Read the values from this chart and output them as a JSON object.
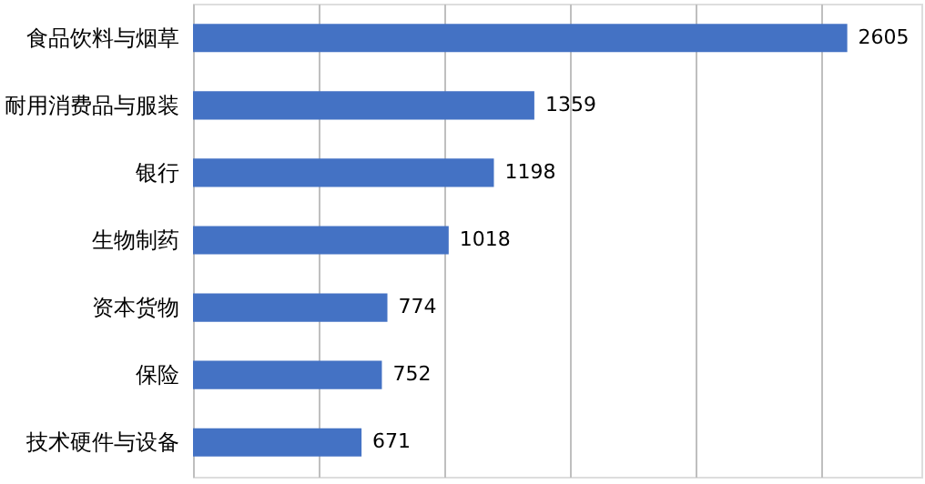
{
  "chart_data": {
    "type": "bar",
    "orientation": "horizontal",
    "categories": [
      "食品饮料与烟草",
      "耐用消费品与服装",
      "银行",
      "生物制药",
      "资本货物",
      "保险",
      "技术硬件与设备"
    ],
    "values": [
      2605,
      1359,
      1198,
      1018,
      774,
      752,
      671
    ],
    "color": "#4472c4",
    "data_labels": true,
    "grid": "x",
    "tick_labels": "y",
    "xlim": [
      0,
      2900
    ],
    "xticks": [
      {
        "value": 0,
        "label": null
      },
      {
        "value": 500,
        "label": null
      },
      {
        "value": 1000,
        "label": null
      },
      {
        "value": 1500,
        "label": null
      },
      {
        "value": 2000,
        "label": null
      },
      {
        "value": 2500,
        "label": null
      }
    ]
  }
}
